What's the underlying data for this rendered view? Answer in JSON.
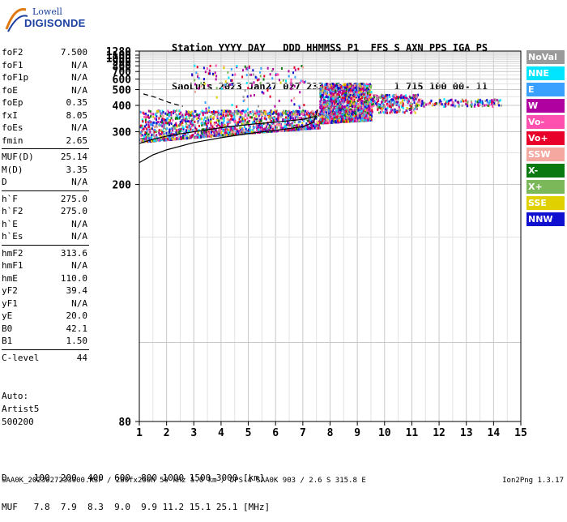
{
  "logo": {
    "line1": "Lowell",
    "line2": "DIGISONDE"
  },
  "header": {
    "line1": "Station YYYY DAY   DDD HHMMSS P1  FFS S AXN PPS IGA PS",
    "line2": "SaoLuis 2023 Jan27 027 233000 RSF     1 715 100 00- 11"
  },
  "params": [
    {
      "k": "foF2",
      "v": "7.500"
    },
    {
      "k": "foF1",
      "v": "N/A"
    },
    {
      "k": "foF1p",
      "v": "N/A"
    },
    {
      "k": "foE",
      "v": "N/A"
    },
    {
      "k": "foEp",
      "v": "0.35"
    },
    {
      "k": "fxI",
      "v": "8.05"
    },
    {
      "k": "foEs",
      "v": "N/A"
    },
    {
      "k": "fmin",
      "v": "2.65"
    },
    {
      "k": "MUF(D)",
      "v": "25.14"
    },
    {
      "k": "M(D)",
      "v": "3.35"
    },
    {
      "k": "D",
      "v": "N/A"
    },
    {
      "k": "h`F",
      "v": "275.0"
    },
    {
      "k": "h`F2",
      "v": "275.0"
    },
    {
      "k": "h`E",
      "v": "N/A"
    },
    {
      "k": "h`Es",
      "v": "N/A"
    },
    {
      "k": "hmF2",
      "v": "313.6"
    },
    {
      "k": "hmF1",
      "v": "N/A"
    },
    {
      "k": "hmE",
      "v": "110.0"
    },
    {
      "k": "yF2",
      "v": "39.4"
    },
    {
      "k": "yF1",
      "v": "N/A"
    },
    {
      "k": "yE",
      "v": "20.0"
    },
    {
      "k": "B0",
      "v": "42.1"
    },
    {
      "k": "B1",
      "v": "1.50"
    },
    {
      "k": "C-level",
      "v": "44"
    }
  ],
  "auto": {
    "line1": "Auto:",
    "line2": "Artist5",
    "line3": "500200"
  },
  "legend": [
    {
      "label": "NoVal",
      "color": "#9a9a9a"
    },
    {
      "label": "NNE",
      "color": "#00e5ff"
    },
    {
      "label": "E",
      "color": "#3aa0ff"
    },
    {
      "label": "W",
      "color": "#b000a0"
    },
    {
      "label": "Vo-",
      "color": "#ff50b0"
    },
    {
      "label": "Vo+",
      "color": "#e8002a"
    },
    {
      "label": "SSW",
      "color": "#f4a8a0"
    },
    {
      "label": "X-",
      "color": "#0a7a10"
    },
    {
      "label": "X+",
      "color": "#7ab85a"
    },
    {
      "label": "SSE",
      "color": "#e0d000"
    },
    {
      "label": "NNW",
      "color": "#1010d0"
    }
  ],
  "footer": {
    "line1": "D     100  200  400  600  800 1000 1500 3000 [km]",
    "line2": "MUF   7.8  7.9  8.3  9.0  9.9 11.2 15.1 25.1 [MHz]",
    "file": "SAA0K_2023027233000.RSF / 280fx256h 50 kHz 5.0 km / DPS-4 SAA0K 903 / 2.6 S 315.8 E",
    "version": "Ion2Png 1.3.17"
  },
  "chart_data": {
    "type": "scatter",
    "xlabel": "",
    "ylabel": "",
    "xlim": [
      1,
      15
    ],
    "ylim": [
      80,
      1280
    ],
    "x_ticks": [
      1,
      2,
      3,
      4,
      5,
      6,
      7,
      8,
      9,
      10,
      11,
      12,
      13,
      14,
      15
    ],
    "y_ticks": [
      80,
      200,
      300,
      400,
      500,
      600,
      700,
      800,
      900,
      1000,
      1100,
      1280
    ],
    "grid": true,
    "trace_o": {
      "x": [
        1.0,
        1.5,
        2.0,
        3.0,
        4.0,
        5.0,
        6.0,
        7.0,
        7.5
      ],
      "y": [
        270,
        280,
        288,
        300,
        312,
        322,
        330,
        340,
        352
      ]
    },
    "trace_model": {
      "x": [
        1.0,
        1.5,
        2.0,
        3.0,
        4.0,
        5.0,
        6.0,
        7.0,
        7.4,
        7.55
      ],
      "y": [
        232,
        246,
        256,
        272,
        284,
        295,
        304,
        315,
        330,
        380
      ]
    },
    "trace_dashed": {
      "x": [
        1.15,
        1.6,
        2.1,
        2.6
      ],
      "y": [
        468,
        445,
        415,
        395
      ]
    },
    "echo_regions": [
      {
        "x": [
          1.0,
          7.6
        ],
        "y": [
          275,
          380
        ],
        "note": "dense"
      },
      {
        "x": [
          7.6,
          9.5
        ],
        "y": [
          330,
          560
        ],
        "note": "dense"
      },
      {
        "x": [
          9.5,
          11.2
        ],
        "y": [
          370,
          470
        ],
        "note": "medium"
      },
      {
        "x": [
          11.2,
          14.3
        ],
        "y": [
          400,
          440
        ],
        "note": "sparse"
      },
      {
        "x": [
          2.9,
          7.1
        ],
        "y": [
          380,
          830
        ],
        "note": "sparse"
      }
    ]
  }
}
